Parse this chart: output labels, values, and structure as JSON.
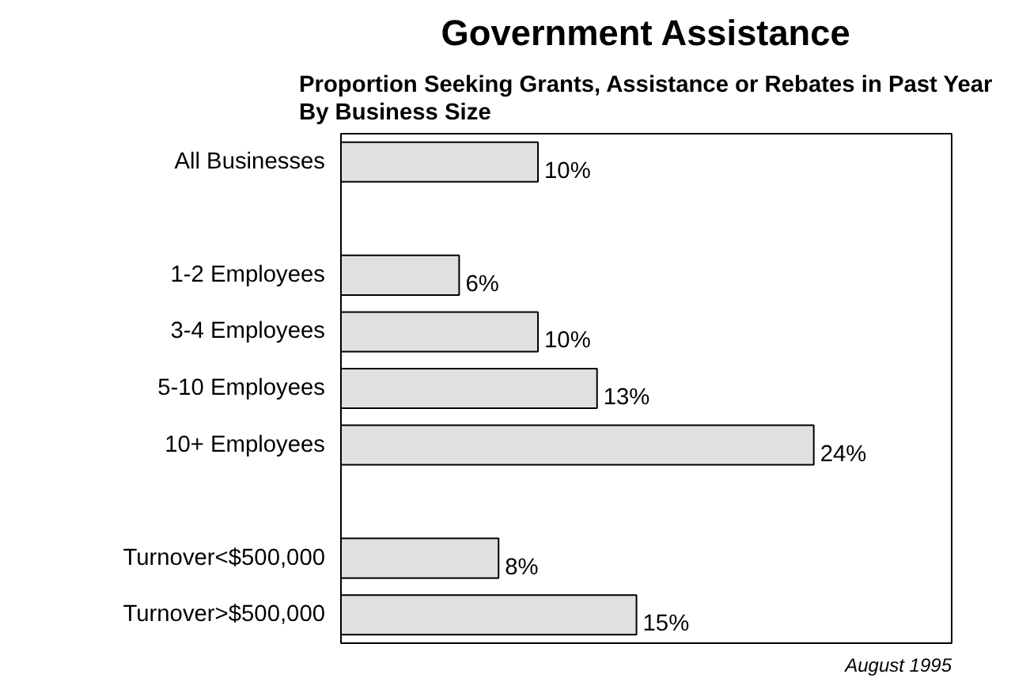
{
  "chart_data": {
    "type": "bar",
    "orientation": "horizontal",
    "title": "Government Assistance",
    "subtitle": "Proportion Seeking Grants, Assistance or Rebates in Past Year\nBy Business Size",
    "categories": [
      "All Businesses",
      null,
      "1-2 Employees",
      "3-4 Employees",
      "5-10 Employees",
      "10+ Employees",
      null,
      "Turnover<$500,000",
      "Turnover>$500,000"
    ],
    "values": [
      10,
      null,
      6,
      10,
      13,
      24,
      null,
      8,
      15
    ],
    "value_labels": [
      "10%",
      null,
      "6%",
      "10%",
      "13%",
      "24%",
      null,
      "8%",
      "15%"
    ],
    "color": "#e0e0e0",
    "xlim": [
      0,
      31
    ],
    "tick_labels": "y",
    "grid": false,
    "annotations": [
      "August 1995"
    ]
  }
}
